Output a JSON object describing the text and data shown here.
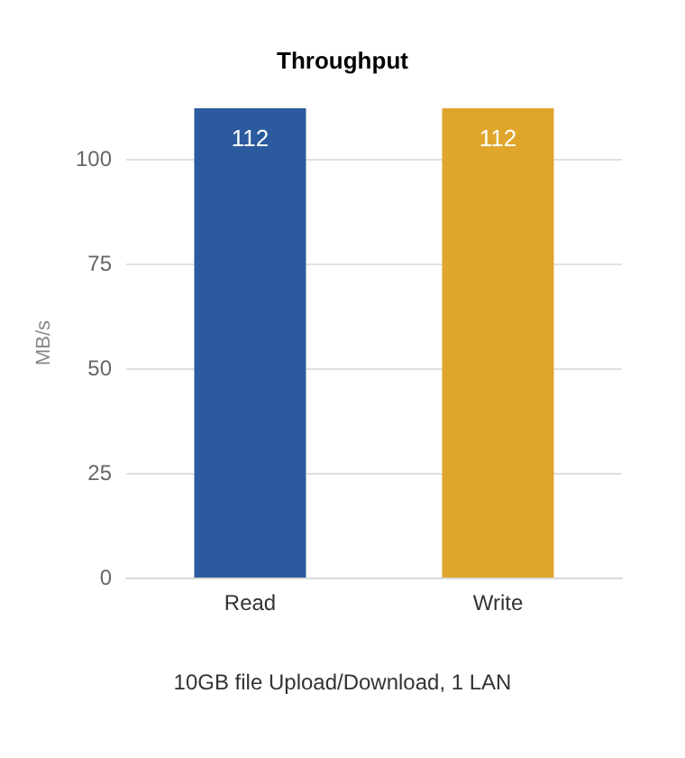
{
  "chart_data": {
    "type": "bar",
    "title": "Throughput",
    "ylabel": "MB/s",
    "categories": [
      "Read",
      "Write"
    ],
    "values": [
      112,
      112
    ],
    "colors": [
      "#2b5b9e",
      "#e0a52b"
    ],
    "ylim": [
      0,
      112
    ],
    "yticks": [
      0,
      25,
      50,
      75,
      100
    ],
    "grid": "y",
    "data_labels": true,
    "annotations": [
      "10GB file Upload/Download, 1 LAN"
    ]
  }
}
